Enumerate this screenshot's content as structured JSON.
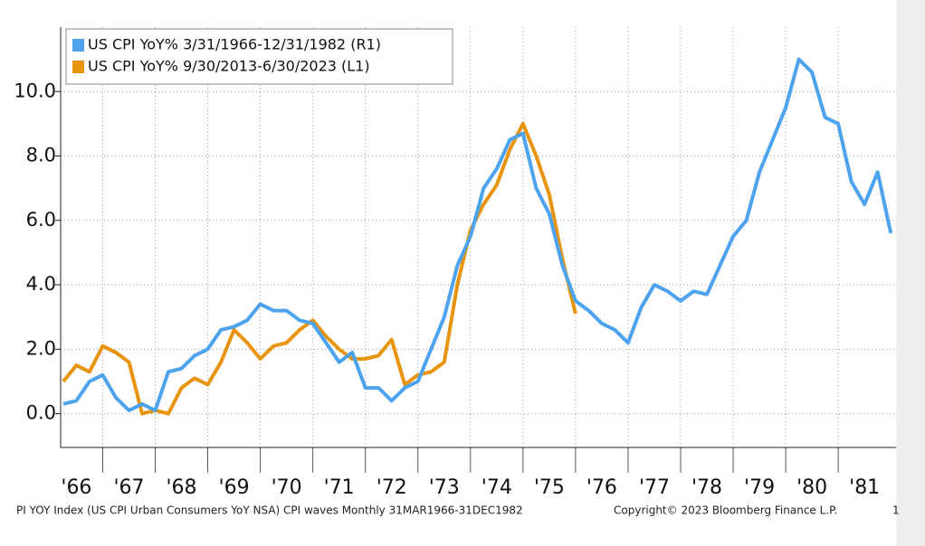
{
  "chart_data": {
    "type": "line",
    "x": [
      1966.25,
      1966.5,
      1966.75,
      1967.0,
      1967.25,
      1967.5,
      1967.75,
      1968.0,
      1968.25,
      1968.5,
      1968.75,
      1969.0,
      1969.25,
      1969.5,
      1969.75,
      1970.0,
      1970.25,
      1970.5,
      1970.75,
      1971.0,
      1971.25,
      1971.5,
      1971.75,
      1972.0,
      1972.25,
      1972.5,
      1972.75,
      1973.0,
      1973.25,
      1973.5,
      1973.75,
      1974.0,
      1974.25,
      1974.5,
      1974.75,
      1975.0,
      1975.25,
      1975.5,
      1975.75,
      1976.0,
      1976.25,
      1976.5,
      1976.75,
      1977.0,
      1977.25,
      1977.5,
      1977.75,
      1978.0,
      1978.25,
      1978.5,
      1978.75,
      1979.0,
      1979.25,
      1979.5,
      1979.75,
      1980.0,
      1980.25,
      1980.5,
      1980.75,
      1981.0,
      1981.25,
      1981.5,
      1981.75,
      1982.0
    ],
    "series": [
      {
        "name": "US CPI YoY% 3/31/1966-12/31/1982 (R1)",
        "color": "#4da3ee",
        "values": [
          0.3,
          0.4,
          1.0,
          1.2,
          0.5,
          0.1,
          0.3,
          0.1,
          1.3,
          1.4,
          1.8,
          2.0,
          2.6,
          2.7,
          2.9,
          3.4,
          3.2,
          3.2,
          2.9,
          2.8,
          2.2,
          1.6,
          1.9,
          0.8,
          0.8,
          0.4,
          0.8,
          1.0,
          2.0,
          3.0,
          4.6,
          5.5,
          7.0,
          7.6,
          8.5,
          8.7,
          7.0,
          6.2,
          4.6,
          3.5,
          3.2,
          2.8,
          2.6,
          2.2,
          3.3,
          4.0,
          3.8,
          3.5,
          3.8,
          3.7,
          4.6,
          5.5,
          6.0,
          7.5,
          8.5,
          9.5,
          11.0,
          10.6,
          9.2,
          9.0,
          7.2,
          6.5,
          7.5,
          5.6
        ]
      },
      {
        "name": "US CPI YoY% 9/30/2013-6/30/2023 (L1)",
        "color": "#e8940f",
        "values": [
          1.0,
          1.5,
          1.3,
          2.1,
          1.9,
          1.6,
          0.0,
          0.1,
          0.0,
          0.8,
          1.1,
          0.9,
          1.6,
          2.6,
          2.2,
          1.7,
          2.1,
          2.2,
          2.6,
          2.9,
          2.4,
          2.0,
          1.7,
          1.7,
          1.8,
          2.3,
          0.9,
          1.2,
          1.3,
          1.6,
          4.0,
          5.7,
          6.5,
          7.1,
          8.2,
          9.0,
          8.0,
          6.8,
          4.8,
          3.1,
          null,
          null,
          null,
          null,
          null,
          null,
          null,
          null,
          null,
          null,
          null,
          null,
          null,
          null,
          null,
          null,
          null,
          null,
          null,
          null,
          null,
          null,
          null,
          null
        ]
      }
    ],
    "xlim": [
      1966.2,
      1982.1
    ],
    "xticks": [
      {
        "value": 1966,
        "label": "'66"
      },
      {
        "value": 1967,
        "label": "'67"
      },
      {
        "value": 1968,
        "label": "'68"
      },
      {
        "value": 1969,
        "label": "'69"
      },
      {
        "value": 1970,
        "label": "'70"
      },
      {
        "value": 1971,
        "label": "'71"
      },
      {
        "value": 1972,
        "label": "'72"
      },
      {
        "value": 1973,
        "label": "'73"
      },
      {
        "value": 1974,
        "label": "'74"
      },
      {
        "value": 1975,
        "label": "'75"
      },
      {
        "value": 1976,
        "label": "'76"
      },
      {
        "value": 1977,
        "label": "'77"
      },
      {
        "value": 1978,
        "label": "'78"
      },
      {
        "value": 1979,
        "label": "'79"
      },
      {
        "value": 1980,
        "label": "'80"
      },
      {
        "value": 1981,
        "label": "'81"
      }
    ],
    "ylim": [
      -1.05,
      12
    ],
    "yticks": [
      {
        "value": 0,
        "label": "0.0"
      },
      {
        "value": 2,
        "label": "2.0"
      },
      {
        "value": 4,
        "label": "4.0"
      },
      {
        "value": 6,
        "label": "6.0"
      },
      {
        "value": 8,
        "label": "8.0"
      },
      {
        "value": 10,
        "label": "10.0"
      }
    ],
    "grid": true,
    "legend": "top-left",
    "footer_left": "PI YOY Index (US CPI Urban Consumers YoY NSA) CPI waves  Monthly 31MAR1966-31DEC1982",
    "footer_right": "Copyright© 2023 Bloomberg Finance L.P.",
    "footer_edge": "1"
  }
}
